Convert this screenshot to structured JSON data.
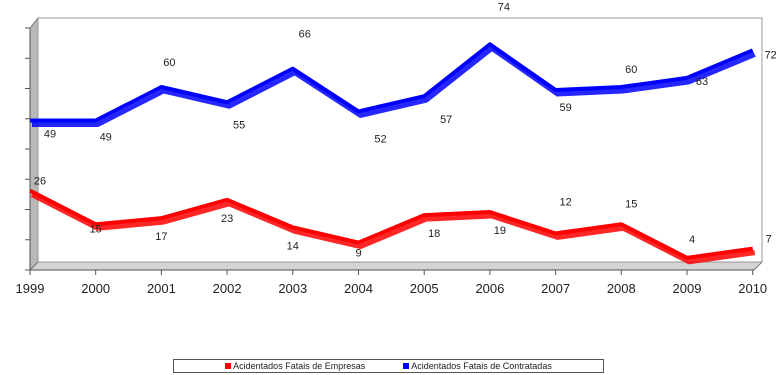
{
  "chart_data": {
    "type": "line",
    "title": "",
    "xlabel": "",
    "ylabel": "",
    "x": [
      "1999",
      "2000",
      "2001",
      "2002",
      "2003",
      "2004",
      "2005",
      "2006",
      "2007",
      "2008",
      "2009",
      "2010"
    ],
    "ylim": [
      0,
      80
    ],
    "grid": false,
    "legend_position": "bottom",
    "series": [
      {
        "name": "Acidentados Fatais de Empresas",
        "color": "#ff0000",
        "values": [
          26,
          15,
          17,
          23,
          14,
          9,
          18,
          19,
          12,
          15,
          4,
          7
        ]
      },
      {
        "name": "Acidentados Fatais de Contratadas",
        "color": "#0000ff",
        "values": [
          49,
          49,
          60,
          55,
          66,
          52,
          57,
          74,
          59,
          60,
          63,
          72
        ]
      }
    ]
  }
}
